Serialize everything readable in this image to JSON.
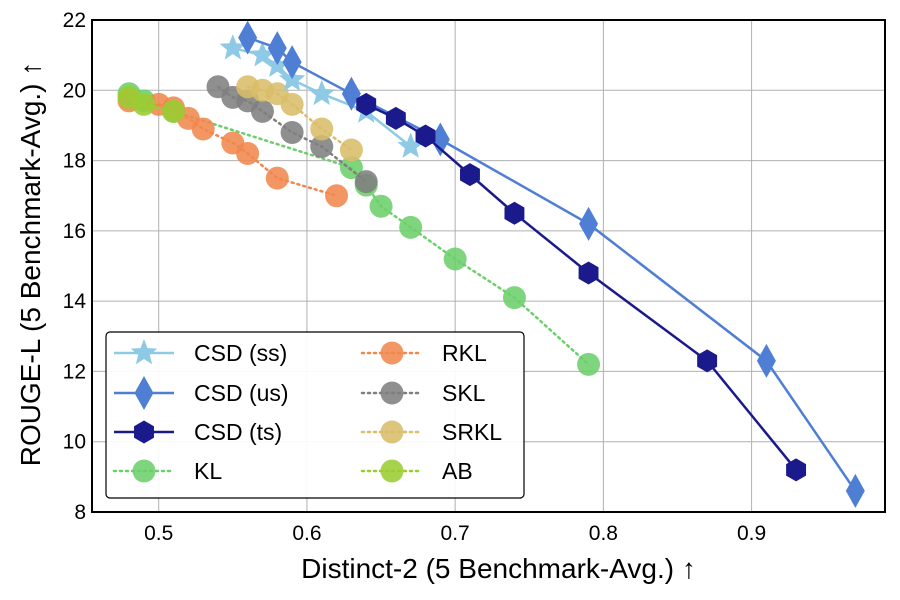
{
  "chart_data": {
    "type": "line",
    "xlabel": "Distinct-2 (5 Benchmark-Avg.) ↑",
    "ylabel": "ROUGE-L (5 Benchmark-Avg.) ↑",
    "xlim": [
      0.455,
      0.99
    ],
    "ylim": [
      8,
      22
    ],
    "xticks": [
      0.5,
      0.6,
      0.7,
      0.8,
      0.9
    ],
    "xtick_labels": [
      "0.5",
      "0.6",
      "0.7",
      "0.8",
      "0.9"
    ],
    "yticks": [
      8,
      10,
      12,
      14,
      16,
      18,
      20,
      22
    ],
    "ytick_labels": [
      "8",
      "10",
      "12",
      "14",
      "16",
      "18",
      "20",
      "22"
    ],
    "grid": true,
    "legend_position": "bottom-left",
    "series": [
      {
        "name": "CSD (ss)",
        "color": "#8ecae6",
        "marker": "star",
        "line": "solid",
        "x": [
          0.55,
          0.57,
          0.58,
          0.59,
          0.61,
          0.64,
          0.67
        ],
        "y": [
          21.2,
          21.0,
          20.7,
          20.3,
          19.9,
          19.4,
          18.4
        ]
      },
      {
        "name": "CSD (us)",
        "color": "#4f7fd4",
        "marker": "diamond",
        "line": "solid",
        "x": [
          0.56,
          0.58,
          0.59,
          0.63,
          0.69,
          0.79,
          0.91,
          0.97
        ],
        "y": [
          21.5,
          21.2,
          20.8,
          19.9,
          18.6,
          16.2,
          12.3,
          8.6
        ]
      },
      {
        "name": "CSD (ts)",
        "color": "#1a1a8c",
        "marker": "hexagon",
        "line": "solid",
        "x": [
          0.64,
          0.66,
          0.68,
          0.71,
          0.74,
          0.79,
          0.87,
          0.93
        ],
        "y": [
          19.6,
          19.2,
          18.7,
          17.6,
          16.5,
          14.8,
          12.3,
          9.2
        ]
      },
      {
        "name": "KL",
        "color": "#6ccf6c",
        "marker": "circle",
        "line": "dotted",
        "x": [
          0.48,
          0.49,
          0.51,
          0.63,
          0.64,
          0.65,
          0.67,
          0.7,
          0.74,
          0.79
        ],
        "y": [
          19.9,
          19.7,
          19.4,
          17.8,
          17.3,
          16.7,
          16.1,
          15.2,
          14.1,
          12.2
        ]
      },
      {
        "name": "RKL",
        "color": "#f0874e",
        "marker": "circle",
        "line": "dotted",
        "x": [
          0.48,
          0.5,
          0.51,
          0.52,
          0.53,
          0.55,
          0.56,
          0.58,
          0.62
        ],
        "y": [
          19.7,
          19.6,
          19.5,
          19.2,
          18.9,
          18.5,
          18.2,
          17.5,
          17.0
        ]
      },
      {
        "name": "SKL",
        "color": "#7f7f7f",
        "marker": "circle",
        "line": "dotted",
        "x": [
          0.54,
          0.55,
          0.56,
          0.57,
          0.59,
          0.61,
          0.64
        ],
        "y": [
          20.1,
          19.8,
          19.7,
          19.4,
          18.8,
          18.4,
          17.4
        ]
      },
      {
        "name": "SRKL",
        "color": "#d9bd6a",
        "marker": "circle",
        "line": "dotted",
        "x": [
          0.56,
          0.57,
          0.58,
          0.59,
          0.61,
          0.63
        ],
        "y": [
          20.1,
          20.0,
          19.9,
          19.6,
          18.9,
          18.3
        ]
      },
      {
        "name": "AB",
        "color": "#9acd32",
        "marker": "circle",
        "line": "dotted",
        "x": [
          0.48,
          0.49,
          0.51
        ],
        "y": [
          19.8,
          19.6,
          19.4
        ]
      }
    ]
  }
}
